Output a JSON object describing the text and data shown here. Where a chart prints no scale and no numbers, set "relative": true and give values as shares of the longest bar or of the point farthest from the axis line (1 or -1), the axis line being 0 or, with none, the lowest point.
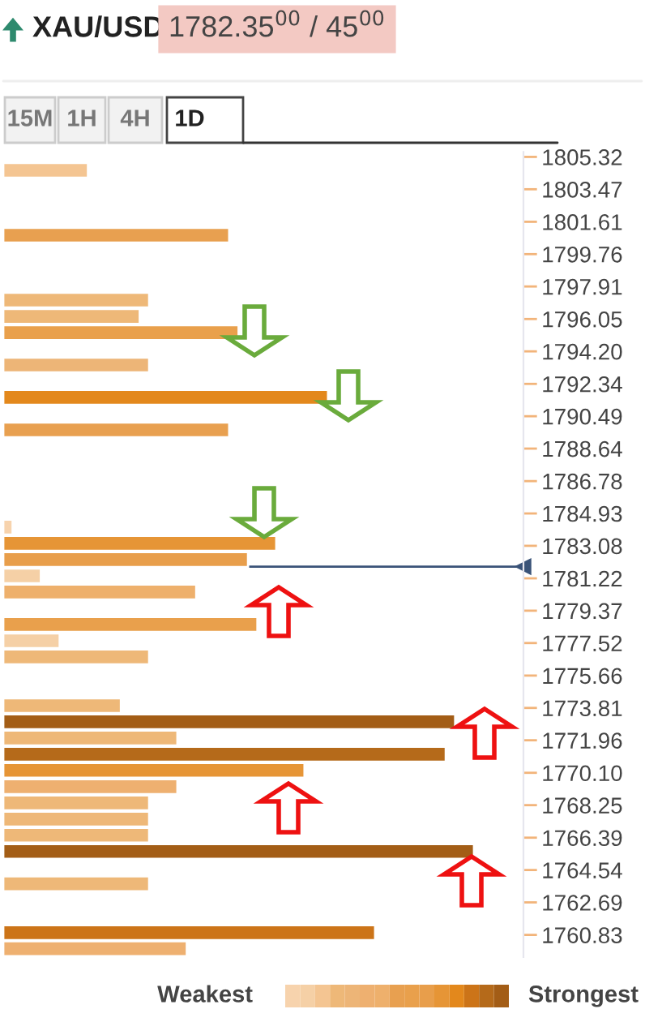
{
  "chart_data": {
    "type": "bar",
    "orientation": "horizontal",
    "relative": true,
    "title": "XAU/USD",
    "subtitle": "1782.35$^{00}$ / 45$^{00}$",
    "annotations": [
      "15M",
      "1H",
      "4H",
      "1D",
      "Weakest",
      "Strongest"
    ],
    "x": [
      1804.55,
      1800.84,
      1797.13,
      1796.2,
      1795.27,
      1793.42,
      1791.57,
      1789.71,
      1784.15,
      1783.22,
      1782.29,
      1781.36,
      1780.44,
      1778.58,
      1777.65,
      1776.73,
      1773.94,
      1773.02,
      1772.09,
      1771.16,
      1770.24,
      1769.31,
      1768.38,
      1767.45,
      1766.53,
      1765.6,
      1763.75,
      1760.96,
      1760.04
    ],
    "values": [
      0.18,
      0.48,
      0.31,
      0.29,
      0.5,
      0.31,
      0.69,
      0.48,
      0.02,
      0.58,
      0.52,
      0.08,
      0.41,
      0.54,
      0.12,
      0.31,
      0.25,
      0.96,
      0.37,
      0.94,
      0.64,
      0.37,
      0.31,
      0.31,
      0.31,
      1,
      0.31,
      0.79,
      0.39
    ],
    "colors": [
      "#f4c592",
      "#e8a050",
      "#eeb878",
      "#eeb878",
      "#e9a04c",
      "#edb577",
      "#e3881c",
      "#e8a050",
      "#f7d3ad",
      "#e69536",
      "#e89e4b",
      "#f5d0a6",
      "#eeb06c",
      "#e9a04c",
      "#f5d0a6",
      "#eeb878",
      "#eeb878",
      "#a35d16",
      "#eeb878",
      "#b56a1a",
      "#e69536",
      "#eeb070",
      "#eeb878",
      "#eeb878",
      "#eeb878",
      "#a35d16",
      "#eeb878",
      "#cc7418",
      "#eeb070"
    ],
    "ylim": [
      1759.56,
      1805.6
    ],
    "yticks": [
      1805.32,
      1803.47,
      1801.61,
      1799.76,
      1797.91,
      1796.05,
      {
        "value": 1794.2,
        "label": "1794.20"
      },
      1792.34,
      1790.49,
      1788.64,
      1786.78,
      1784.93,
      1783.08,
      1781.22,
      1779.37,
      1777.52,
      1775.66,
      1773.81,
      1771.96,
      {
        "value": 1770.1,
        "label": "1770.10"
      },
      1768.25,
      1766.39,
      1764.54,
      1762.69,
      1760.83
    ],
    "ref_lines": [
      {
        "axis": "y",
        "value": 1781.89,
        "color": "#3a5378"
      }
    ],
    "grid": false,
    "legend": false
  }
}
